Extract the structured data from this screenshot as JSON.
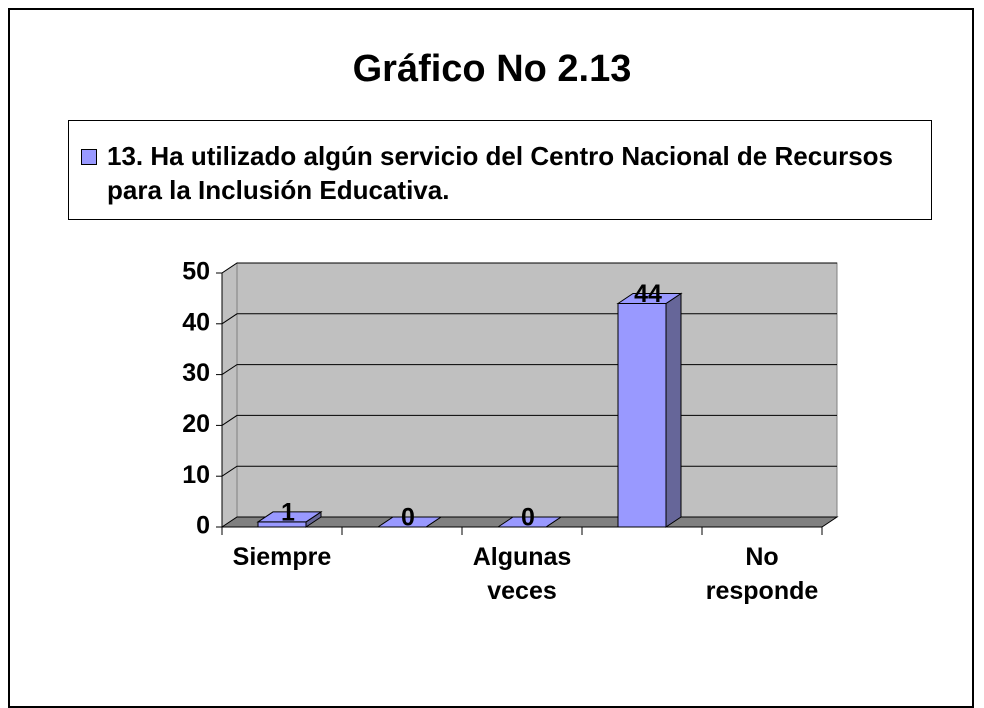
{
  "chart_data": {
    "type": "bar3d",
    "title": "Gráfico No 2.13",
    "categories": [
      "Siempre",
      null,
      "Algunas veces",
      null,
      "No responde"
    ],
    "series": [
      {
        "name": "13. Ha utilizado algún servicio del Centro Nacional de Recursos para la Inclusión Educativa.",
        "color": "#9999ff",
        "values": [
          1,
          0,
          0,
          44,
          null
        ]
      }
    ],
    "ylim": [
      0,
      50
    ],
    "yticks": [
      0,
      10,
      20,
      30,
      40,
      50
    ],
    "grid": true
  }
}
